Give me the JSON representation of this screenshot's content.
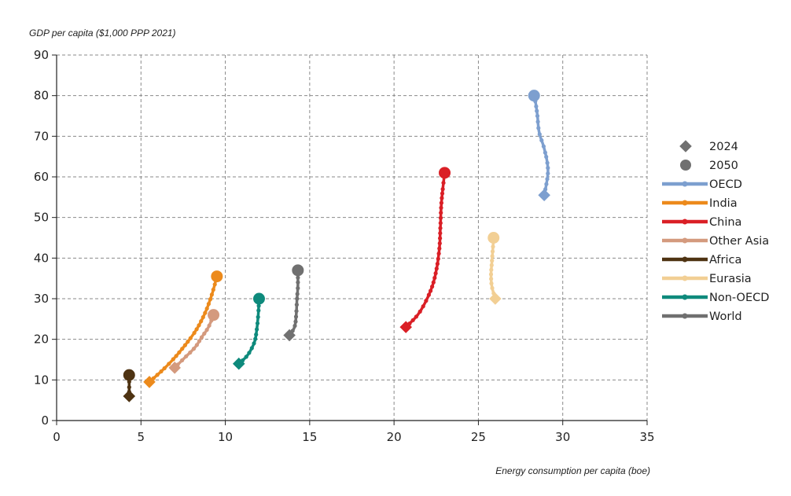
{
  "chart_data": {
    "type": "line",
    "title": "",
    "ylabel": "GDP per capita ($1,000 PPP 2021)",
    "xlabel": "Energy consumption per capita (boe)",
    "xlim": [
      0,
      35
    ],
    "ylim": [
      0,
      90
    ],
    "xticks": [
      "0",
      "5",
      "10",
      "15",
      "20",
      "25",
      "30",
      "35"
    ],
    "yticks": [
      "0",
      "10",
      "20",
      "30",
      "40",
      "50",
      "60",
      "70",
      "80",
      "90"
    ],
    "grid": true,
    "legend_position": "right",
    "marker_legend": [
      {
        "label": "2024",
        "marker": "diamond"
      },
      {
        "label": "2050",
        "marker": "circle"
      }
    ],
    "series": [
      {
        "name": "OECD",
        "color": "#7d9fcf",
        "points": [
          [
            28.9,
            55.5
          ],
          [
            29.1,
            60
          ],
          [
            29.1,
            63
          ],
          [
            28.9,
            67
          ],
          [
            28.6,
            71
          ],
          [
            28.5,
            75
          ],
          [
            28.4,
            78
          ],
          [
            28.3,
            80
          ]
        ]
      },
      {
        "name": "India",
        "color": "#ec8a1c",
        "points": [
          [
            5.5,
            9.5
          ],
          [
            6.3,
            12.5
          ],
          [
            7.0,
            15.5
          ],
          [
            7.7,
            19
          ],
          [
            8.3,
            22.5
          ],
          [
            8.8,
            26.5
          ],
          [
            9.2,
            31
          ],
          [
            9.5,
            35.5
          ]
        ]
      },
      {
        "name": "China",
        "color": "#da1f26",
        "points": [
          [
            20.7,
            23
          ],
          [
            21.4,
            26
          ],
          [
            21.9,
            29.5
          ],
          [
            22.3,
            33.5
          ],
          [
            22.55,
            38
          ],
          [
            22.7,
            43
          ],
          [
            22.75,
            48
          ],
          [
            22.8,
            53
          ],
          [
            22.9,
            57.5
          ],
          [
            23.0,
            61
          ]
        ]
      },
      {
        "name": "Other Asia",
        "color": "#d49a7e",
        "points": [
          [
            7.0,
            13
          ],
          [
            7.6,
            15.5
          ],
          [
            8.2,
            18
          ],
          [
            8.6,
            20.5
          ],
          [
            9.0,
            23
          ],
          [
            9.3,
            26
          ]
        ]
      },
      {
        "name": "Africa",
        "color": "#4e3312",
        "points": [
          [
            4.3,
            6
          ],
          [
            4.3,
            7.5
          ],
          [
            4.3,
            9
          ],
          [
            4.3,
            11.2
          ]
        ]
      },
      {
        "name": "Eurasia",
        "color": "#f2cf94",
        "points": [
          [
            26.0,
            30
          ],
          [
            25.8,
            33
          ],
          [
            25.75,
            36
          ],
          [
            25.8,
            39
          ],
          [
            25.85,
            42
          ],
          [
            25.9,
            45
          ]
        ]
      },
      {
        "name": "Non-OECD",
        "color": "#0e8a7c",
        "points": [
          [
            10.8,
            14
          ],
          [
            11.3,
            16
          ],
          [
            11.7,
            19
          ],
          [
            11.85,
            22
          ],
          [
            11.95,
            26
          ],
          [
            12.0,
            30
          ]
        ]
      },
      {
        "name": "World",
        "color": "#707070",
        "points": [
          [
            13.8,
            21
          ],
          [
            14.1,
            23
          ],
          [
            14.2,
            26
          ],
          [
            14.25,
            30
          ],
          [
            14.3,
            33
          ],
          [
            14.3,
            37
          ]
        ]
      }
    ]
  }
}
